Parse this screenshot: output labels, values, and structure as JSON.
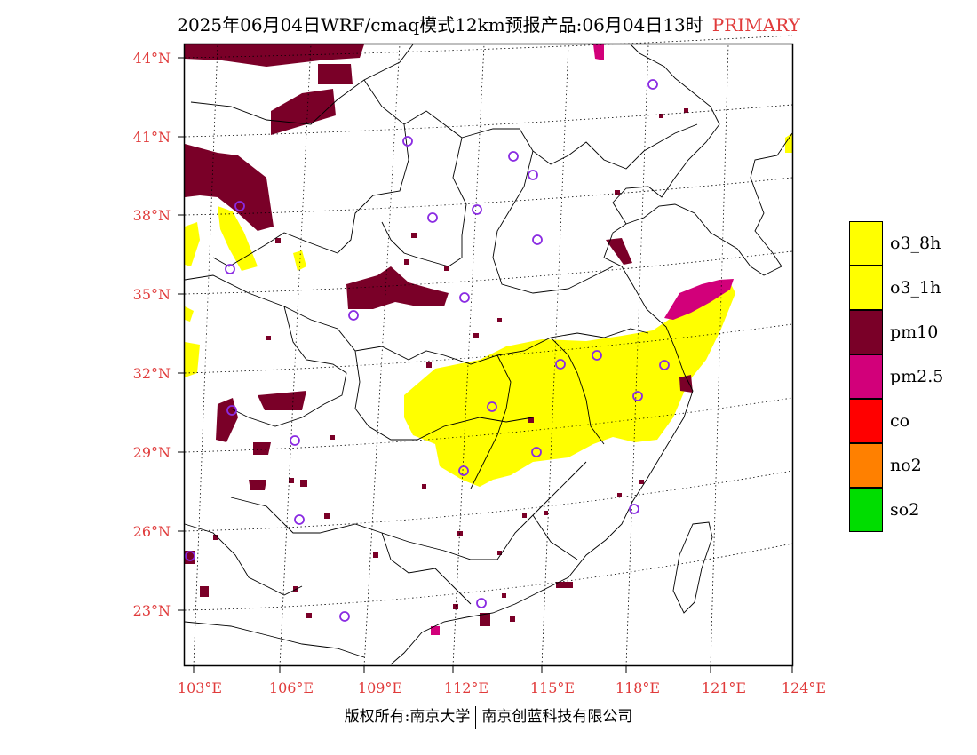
{
  "title": {
    "main": "2025年06月04日WRF/cmaq模式12km预报产品:06月04日13时",
    "tag": "PRIMARY"
  },
  "lat_labels": [
    "44°N",
    "41°N",
    "38°N",
    "35°N",
    "32°N",
    "29°N",
    "26°N",
    "23°N"
  ],
  "lon_labels": [
    "103°E",
    "106°E",
    "109°E",
    "112°E",
    "115°E",
    "118°E",
    "121°E",
    "124°E"
  ],
  "legend": [
    {
      "label": "o3_8h",
      "color": "#ffff00"
    },
    {
      "label": "o3_1h",
      "color": "#ffff00"
    },
    {
      "label": "pm10",
      "color": "#7a0028"
    },
    {
      "label": "pm2.5",
      "color": "#d2007a"
    },
    {
      "label": "co",
      "color": "#ff0000"
    },
    {
      "label": "no2",
      "color": "#ff8000"
    },
    {
      "label": "so2",
      "color": "#00dd00"
    }
  ],
  "colors": {
    "axis_label": "#e03a3a",
    "station_marker": "#8a2be2",
    "boundary": "#000000"
  },
  "footer": {
    "left": "版权所有:南京大学",
    "right": "南京创蓝科技有限公司"
  }
}
